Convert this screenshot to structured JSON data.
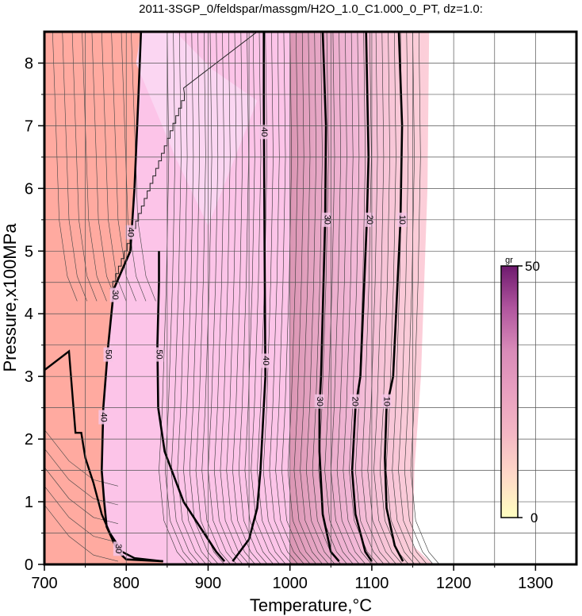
{
  "chart_data": {
    "type": "heatmap",
    "title": "2011-3SGP_0/feldspar/massgm/H2O_1.0_C1.000_0_PT, dz=1.0:",
    "xlabel": "Temperature,°C",
    "ylabel": "Pressure,x100MPa",
    "xlim": [
      700,
      1350
    ],
    "ylim": [
      0,
      8.5
    ],
    "xticks": [
      700,
      800,
      900,
      1000,
      1100,
      1200,
      1300
    ],
    "yticks": [
      0,
      1,
      2,
      3,
      4,
      5,
      6,
      7,
      8
    ],
    "grid": true,
    "colorbar": {
      "unit": "gr",
      "min": 0,
      "max": 50,
      "min_label": "0",
      "max_label": "50",
      "colors": [
        "#ffffc0",
        "#ffd9c8",
        "#f4b7c4",
        "#e8a0c0",
        "#d88ab8",
        "#b0559e",
        "#6e1a6e"
      ]
    },
    "regions": [
      {
        "name": "low-T region",
        "color": "#ffaaa0"
      },
      {
        "name": "middle region",
        "color": "#fcc4e8"
      },
      {
        "name": "wedge region",
        "color": "#fbd6f2"
      },
      {
        "name": "absent region",
        "color": "#ffffff"
      }
    ],
    "contours_bold": [
      {
        "label": "40",
        "points": [
          [
            968,
            8.5
          ],
          [
            968,
            7.4
          ],
          [
            969,
            5.0
          ],
          [
            970,
            3.0
          ],
          [
            964,
            1.5
          ],
          [
            960,
            0.9
          ],
          [
            950,
            0.4
          ],
          [
            930,
            0.05
          ]
        ]
      },
      {
        "label": "30",
        "points": [
          [
            1040,
            8.5
          ],
          [
            1044,
            7.0
          ],
          [
            1043,
            5.5
          ],
          [
            1038,
            3.0
          ],
          [
            1036,
            2.5
          ],
          [
            1036,
            1.8
          ],
          [
            1040,
            0.8
          ],
          [
            1050,
            0.2
          ],
          [
            1060,
            0.05
          ]
        ]
      },
      {
        "label": "20",
        "points": [
          [
            1093,
            8.5
          ],
          [
            1096,
            6.5
          ],
          [
            1094,
            5.5
          ],
          [
            1086,
            3.0
          ],
          [
            1080,
            2.5
          ],
          [
            1076,
            1.5
          ],
          [
            1080,
            0.8
          ],
          [
            1092,
            0.2
          ],
          [
            1100,
            0.05
          ]
        ]
      },
      {
        "label": "10",
        "points": [
          [
            1133,
            8.5
          ],
          [
            1137,
            7.0
          ],
          [
            1135,
            5.5
          ],
          [
            1126,
            3.0
          ],
          [
            1118,
            2.5
          ],
          [
            1116,
            1.7
          ],
          [
            1118,
            0.9
          ],
          [
            1128,
            0.3
          ],
          [
            1138,
            0.05
          ]
        ]
      },
      {
        "label": "50",
        "points": [
          [
            840,
            5.0
          ],
          [
            840,
            4.5
          ],
          [
            838,
            3.5
          ],
          [
            839,
            2.5
          ],
          [
            847,
            1.8
          ],
          [
            870,
            1.0
          ],
          [
            895,
            0.5
          ],
          [
            910,
            0.2
          ],
          [
            920,
            0.05
          ]
        ]
      },
      {
        "label": "40",
        "points": [
          [
            818,
            8.5
          ],
          [
            815,
            7.5
          ],
          [
            810,
            6.0
          ],
          [
            805,
            5.0
          ],
          [
            785,
            4.4
          ],
          [
            778,
            3.5
          ],
          [
            772,
            2.5
          ],
          [
            770,
            1.5
          ],
          [
            773,
            1.0
          ],
          [
            776,
            0.6
          ],
          [
            790,
            0.2
          ],
          [
            800,
            0.08
          ],
          [
            845,
            0.05
          ]
        ]
      }
    ],
    "contour_labels": [
      {
        "text": "40",
        "x": 968,
        "y": 6.9
      },
      {
        "text": "40",
        "x": 970,
        "y": 3.25
      },
      {
        "text": "30",
        "x": 1045,
        "y": 5.5
      },
      {
        "text": "30",
        "x": 1036,
        "y": 2.6
      },
      {
        "text": "20",
        "x": 1097,
        "y": 5.5
      },
      {
        "text": "20",
        "x": 1079,
        "y": 2.6
      },
      {
        "text": "10",
        "x": 1137,
        "y": 5.5
      },
      {
        "text": "10",
        "x": 1118,
        "y": 2.6
      },
      {
        "text": "50",
        "x": 840,
        "y": 3.35
      },
      {
        "text": "50",
        "x": 778,
        "y": 3.35
      },
      {
        "text": "40",
        "x": 805,
        "y": 5.3
      },
      {
        "text": "40",
        "x": 772,
        "y": 2.35
      },
      {
        "text": "30",
        "x": 786,
        "y": 4.3
      },
      {
        "text": "30",
        "x": 790,
        "y": 0.25
      }
    ]
  }
}
